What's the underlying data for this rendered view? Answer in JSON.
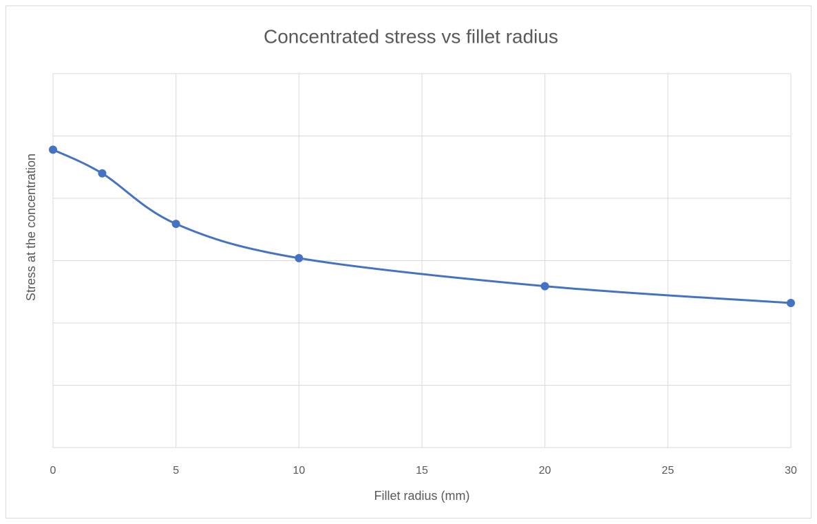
{
  "chart_data": {
    "type": "scatter_smooth",
    "title": "Concentrated stress vs fillet radius",
    "x_label": "Fillet radius (mm)",
    "y_label": "Stress at the concentration",
    "x": [
      0,
      2,
      5,
      10,
      20,
      30
    ],
    "series": [
      {
        "name": "Stress",
        "color": "#4472c4",
        "values": [
          4.78,
          4.4,
          3.59,
          3.04,
          2.59,
          2.32
        ]
      }
    ],
    "xlim": [
      0,
      30
    ],
    "xticks": [
      0,
      5,
      10,
      15,
      20,
      25,
      30
    ],
    "ylim": [
      0,
      6
    ],
    "yticks": [
      0,
      1,
      2,
      3,
      4,
      5,
      6
    ],
    "ytick_labels": false,
    "grid": true,
    "legend": false
  }
}
